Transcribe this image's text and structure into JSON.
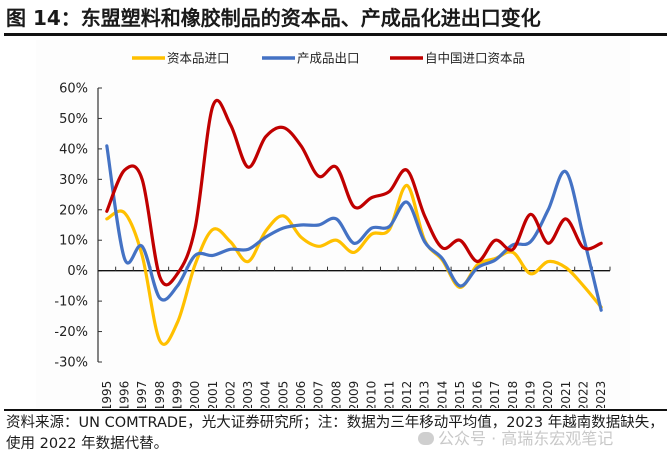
{
  "header": {
    "title": "图 14：东盟塑料和橡胶制品的资本品、产成品化进出口变化"
  },
  "footer": {
    "source_note": "资料来源：UN COMTRADE，光大证券研究所；注：数据为三年移动平均值，2023 年越南数据缺失，使用 2022 年数据代替。",
    "watermark": "公众号 · 高瑞东宏观笔记"
  },
  "chart_data": {
    "type": "line",
    "title": "东盟塑料和橡胶制品的资本品、产成品化进出口变化",
    "xlabel": "",
    "ylabel": "",
    "ylim": [
      -30,
      60
    ],
    "y_ticks": [
      -30,
      -20,
      -10,
      0,
      10,
      20,
      30,
      40,
      50,
      60
    ],
    "y_tick_labels": [
      "-30%",
      "-20%",
      "-10%",
      "0%",
      "10%",
      "20%",
      "30%",
      "40%",
      "50%",
      "60%"
    ],
    "y_unit": "%",
    "grid": false,
    "legend_position": "top-center",
    "smooth": true,
    "categories": [
      "1995",
      "1996",
      "1997",
      "1998",
      "1999",
      "2000",
      "2001",
      "2002",
      "2003",
      "2004",
      "2005",
      "2006",
      "2007",
      "2008",
      "2009",
      "2010",
      "2011",
      "2012",
      "2013",
      "2014",
      "2015",
      "2016",
      "2017",
      "2018",
      "2019",
      "2020",
      "2021",
      "2022",
      "2023"
    ],
    "series": [
      {
        "name": "资本品进口",
        "color": "#FFC000",
        "values": [
          17,
          19,
          5,
          -23,
          -17,
          2,
          13.5,
          9.5,
          3,
          13,
          18,
          11,
          8,
          10,
          6,
          12,
          13.5,
          28,
          10,
          3.5,
          -5.5,
          2,
          4,
          6,
          -1,
          3,
          1,
          -5,
          -12
        ]
      },
      {
        "name": "产成品出口",
        "color": "#4472C4",
        "values": [
          41,
          4,
          8,
          -9,
          -5,
          5,
          5,
          7,
          7,
          11,
          14,
          15,
          15,
          17,
          9,
          14,
          14.5,
          22.5,
          9.5,
          4,
          -5,
          1,
          3.5,
          8.5,
          9.5,
          20,
          32.5,
          11,
          -13
        ]
      },
      {
        "name": "自中国进口资本品",
        "color": "#C00000",
        "values": [
          19.5,
          33,
          30,
          -2,
          -1,
          14,
          54,
          48,
          34,
          44,
          47,
          41,
          31,
          34,
          21,
          24,
          26,
          33,
          18,
          7.5,
          10,
          3,
          10,
          7,
          18.5,
          9,
          17,
          7.5,
          9
        ]
      }
    ]
  }
}
